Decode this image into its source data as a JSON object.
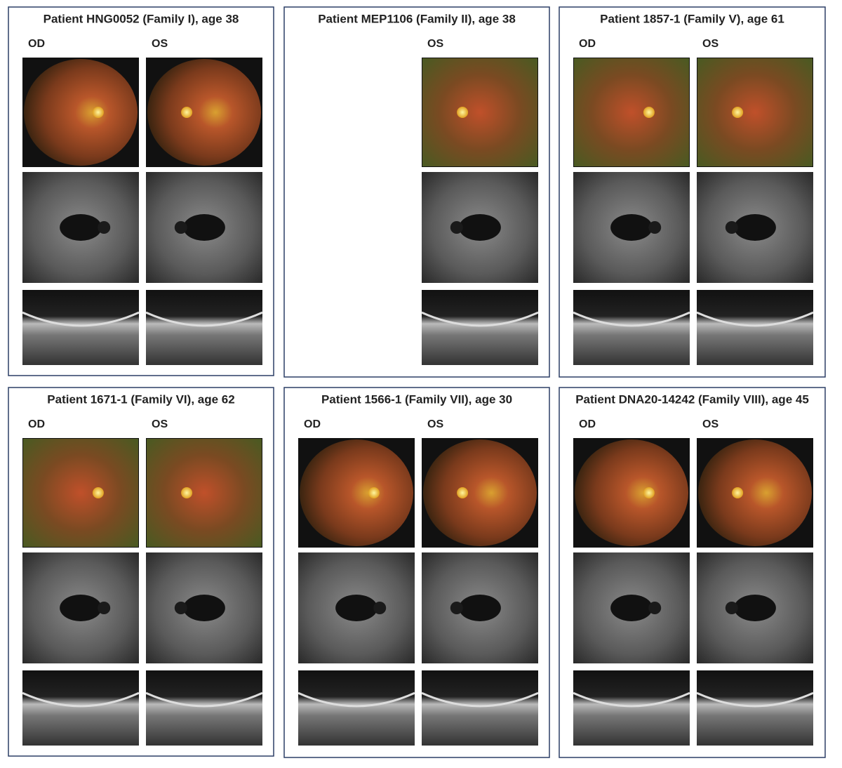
{
  "panels": [
    {
      "title": "Patient HNG0052 (Family I), age 38",
      "eyes": [
        "OD",
        "OS"
      ]
    },
    {
      "title": "Patient MEP1106 (Family II), age 38",
      "eyes": [
        "OS"
      ]
    },
    {
      "title": "Patient 1857-1 (Family V), age 61",
      "eyes": [
        "OD",
        "OS"
      ]
    },
    {
      "title": "Patient 1671-1 (Family VI), age 62",
      "eyes": [
        "OD",
        "OS"
      ]
    },
    {
      "title": "Patient 1566-1 (Family VII), age 30",
      "eyes": [
        "OD",
        "OS"
      ]
    },
    {
      "title": "Patient DNA20-14242 (Family VIII), age 45",
      "eyes": [
        "OD",
        "OS"
      ]
    }
  ]
}
